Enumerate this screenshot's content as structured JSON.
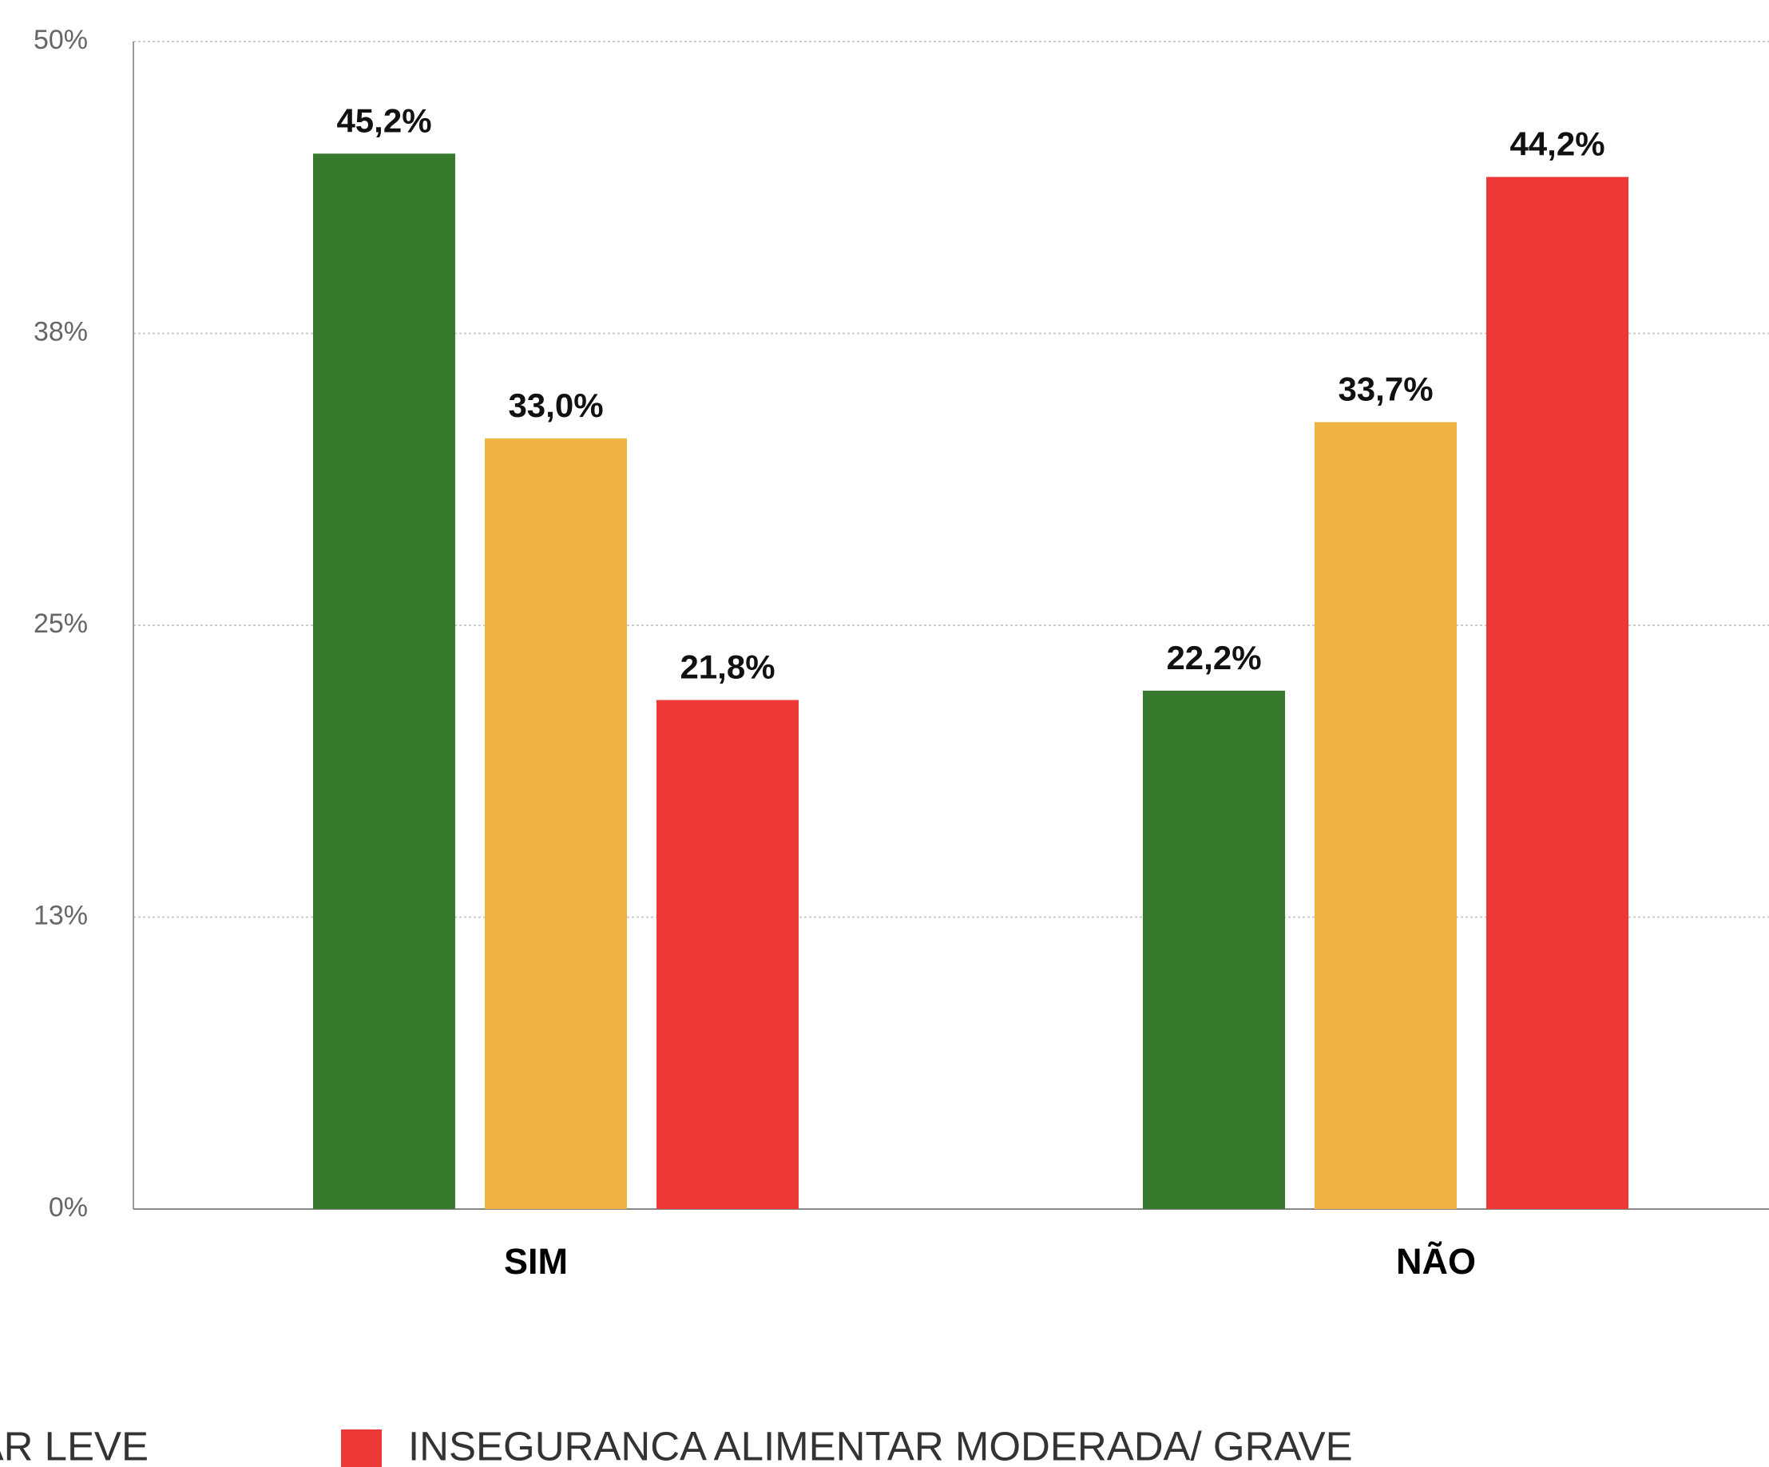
{
  "chart_data": {
    "type": "bar",
    "categories": [
      "SIM",
      "NÃO"
    ],
    "series": [
      {
        "color": "#387a2d",
        "values": [
          45.2,
          22.2
        ],
        "value_labels": [
          "45,2%",
          "22,2%"
        ]
      },
      {
        "name": "AR LEVE",
        "color": "#f0b242",
        "values": [
          33.0,
          33.7
        ],
        "value_labels": [
          "33,0%",
          "33,7%"
        ]
      },
      {
        "name": "INSEGURANCA ALIMENTAR MODERADA/ GRAVE",
        "color": "#ee3835",
        "values": [
          21.8,
          44.2
        ],
        "value_labels": [
          "21,8%",
          "44,2%"
        ]
      }
    ],
    "ylim": [
      0,
      50
    ],
    "yticks": [
      {
        "value": 0,
        "label": "0%"
      },
      {
        "value": 12.5,
        "label": "13%"
      },
      {
        "value": 25,
        "label": "25%"
      },
      {
        "value": 37.5,
        "label": "38%"
      },
      {
        "value": 50,
        "label": "50%"
      }
    ],
    "grid": true
  }
}
